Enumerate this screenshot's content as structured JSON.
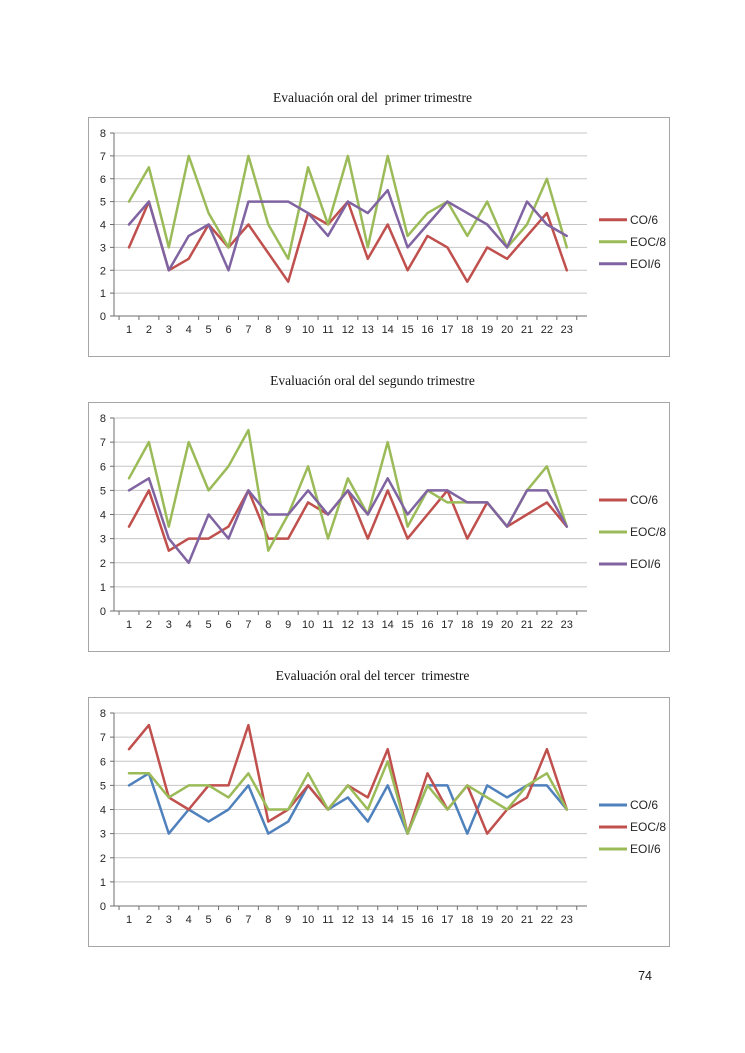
{
  "page": {
    "number": "74"
  },
  "colors": {
    "series_red": "#C0504D",
    "series_green": "#9BBB59",
    "series_purple": "#8064A2",
    "series_blue": "#4F81BD",
    "gridline": "#C6C6C6",
    "axis": "#6E6E6E",
    "box_border": "#A6A6A6"
  },
  "chart_data": [
    {
      "type": "line",
      "title": "Evaluación oral del  primer trimestre",
      "x": [
        1,
        2,
        3,
        4,
        5,
        6,
        7,
        8,
        9,
        10,
        11,
        12,
        13,
        14,
        15,
        16,
        17,
        18,
        19,
        20,
        21,
        22,
        23
      ],
      "ylim": [
        0,
        8
      ],
      "yticks": [
        0,
        1,
        2,
        3,
        4,
        5,
        6,
        7,
        8
      ],
      "grid": true,
      "legend_position": "right",
      "series": [
        {
          "name": "CO/6",
          "color": "#C0504D",
          "values": [
            3,
            5,
            2,
            2.5,
            4,
            3,
            4,
            2.75,
            1.5,
            4.5,
            4,
            5,
            2.5,
            4,
            2,
            3.5,
            3,
            1.5,
            3,
            2.5,
            3.5,
            4.5,
            2
          ]
        },
        {
          "name": "EOC/8",
          "color": "#9BBB59",
          "values": [
            5,
            6.5,
            3,
            7,
            4.5,
            3,
            7,
            4,
            2.5,
            6.5,
            4,
            7,
            3,
            7,
            3.5,
            4.5,
            5,
            3.5,
            5,
            3,
            4,
            6,
            3
          ]
        },
        {
          "name": "EOI/6",
          "color": "#8064A2",
          "values": [
            4,
            5,
            2,
            3.5,
            4,
            2,
            5,
            5,
            5,
            4.5,
            3.5,
            5,
            4.5,
            5.5,
            3,
            4,
            5,
            4.5,
            4,
            3,
            5,
            4,
            3.5
          ]
        }
      ]
    },
    {
      "type": "line",
      "title": "Evaluación oral del segundo trimestre",
      "x": [
        1,
        2,
        3,
        4,
        5,
        6,
        7,
        8,
        9,
        10,
        11,
        12,
        13,
        14,
        15,
        16,
        17,
        18,
        19,
        20,
        21,
        22,
        23
      ],
      "ylim": [
        0,
        8
      ],
      "yticks": [
        0,
        1,
        2,
        3,
        4,
        5,
        6,
        7,
        8
      ],
      "grid": true,
      "legend_position": "right",
      "series": [
        {
          "name": "CO/6",
          "color": "#C0504D",
          "values": [
            3.5,
            5,
            2.5,
            3,
            3,
            3.5,
            5,
            3,
            3,
            4.5,
            4,
            5,
            3,
            5,
            3,
            4,
            5,
            3,
            4.5,
            3.5,
            4,
            4.5,
            3.5
          ]
        },
        {
          "name": "EOC/8",
          "color": "#9BBB59",
          "values": [
            5.5,
            7,
            3.5,
            7,
            5,
            6,
            7.5,
            2.5,
            4,
            6,
            3,
            5.5,
            4,
            7,
            3.5,
            5,
            4.5,
            4.5,
            4.5,
            3.5,
            5,
            6,
            3.5
          ]
        },
        {
          "name": "EOI/6",
          "color": "#8064A2",
          "values": [
            5,
            5.5,
            3,
            2,
            4,
            3,
            5,
            4,
            4,
            5,
            4,
            5,
            4,
            5.5,
            4,
            5,
            5,
            4.5,
            4.5,
            3.5,
            5,
            5,
            3.5
          ]
        }
      ]
    },
    {
      "type": "line",
      "title": "Evaluación oral del tercer  trimestre",
      "x": [
        1,
        2,
        3,
        4,
        5,
        6,
        7,
        8,
        9,
        10,
        11,
        12,
        13,
        14,
        15,
        16,
        17,
        18,
        19,
        20,
        21,
        22,
        23
      ],
      "ylim": [
        0,
        8
      ],
      "yticks": [
        0,
        1,
        2,
        3,
        4,
        5,
        6,
        7,
        8
      ],
      "grid": true,
      "legend_position": "right",
      "series": [
        {
          "name": "CO/6",
          "color": "#4F81BD",
          "values": [
            5,
            5.5,
            3,
            4,
            3.5,
            4,
            5,
            3,
            3.5,
            5,
            4,
            4.5,
            3.5,
            5,
            3,
            5,
            5,
            3,
            5,
            4.5,
            5,
            5,
            4
          ]
        },
        {
          "name": "EOC/8",
          "color": "#C0504D",
          "values": [
            6.5,
            7.5,
            4.5,
            4,
            5,
            5,
            7.5,
            3.5,
            4,
            5,
            4,
            5,
            4.5,
            6.5,
            3,
            5.5,
            4,
            5,
            3,
            4,
            4.5,
            6.5,
            4
          ]
        },
        {
          "name": "EOI/6",
          "color": "#9BBB59",
          "values": [
            5.5,
            5.5,
            4.5,
            5,
            5,
            4.5,
            5.5,
            4,
            4,
            5.5,
            4,
            5,
            4,
            6,
            3,
            5,
            4,
            5,
            4.5,
            4,
            5,
            5.5,
            4
          ]
        }
      ]
    }
  ]
}
